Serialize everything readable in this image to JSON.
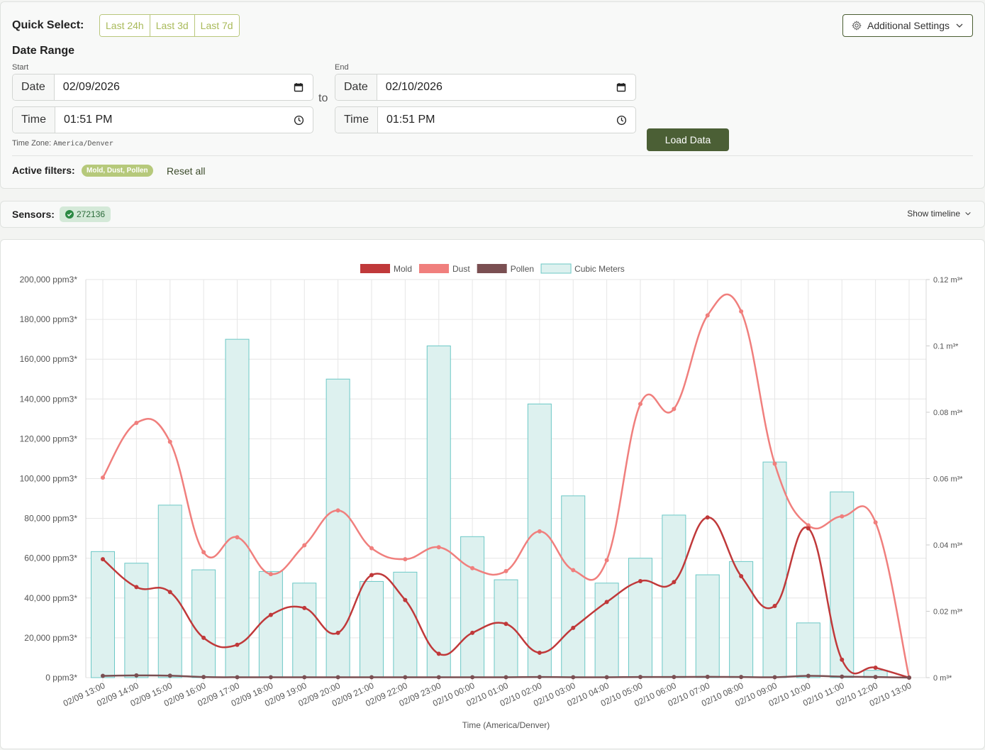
{
  "quick_select": {
    "label": "Quick Select:",
    "options": [
      "Last 24h",
      "Last 3d",
      "Last 7d"
    ]
  },
  "settings": {
    "label": "Additional Settings",
    "icon": "gear-icon",
    "chevron": "chevron-down-icon"
  },
  "date_range": {
    "title": "Date Range",
    "start_label": "Start",
    "end_label": "End",
    "to_text": "to",
    "start": {
      "date_addon": "Date",
      "date_value": "02/09/2026",
      "time_addon": "Time",
      "time_value": "01:51 PM"
    },
    "end": {
      "date_addon": "Date",
      "date_value": "02/10/2026",
      "time_addon": "Time",
      "time_value": "01:51 PM"
    },
    "timezone_label": "Time Zone:",
    "timezone_value": "America/Denver",
    "load_button": "Load Data"
  },
  "filters": {
    "label": "Active filters:",
    "badge": "Mold, Dust, Pollen",
    "reset": "Reset all"
  },
  "sensors": {
    "label": "Sensors:",
    "id": "272136",
    "status_icon": "check-circle-icon",
    "timeline_link": "Show timeline"
  },
  "colors": {
    "accent": "#4b5f35",
    "quick_select": "#a9ba5a",
    "mold": "#c0393a",
    "dust": "#f07f7d",
    "pollen": "#7a4f52",
    "cubic_fill": "#ddf1ef",
    "cubic_stroke": "#6cc8c6"
  },
  "chart_data": {
    "type": "line",
    "xlabel": "Time (America/Denver)",
    "y_left": {
      "min": 0,
      "max": 200000,
      "step": 20000,
      "unit": "ppm3*"
    },
    "y_right": {
      "min": 0,
      "max": 0.12,
      "ticks": [
        "0 m³*",
        "0.02 m³*",
        "0.04 m³*",
        "0.06 m³*",
        "0.08 m³*",
        "0.1 m³*",
        "0.12 m³*"
      ]
    },
    "grid": true,
    "legend_position": "top",
    "y_left_ticks": [
      "0 ppm3*",
      "20,000 ppm3*",
      "40,000 ppm3*",
      "60,000 ppm3*",
      "80,000 ppm3*",
      "100,000 ppm3*",
      "120,000 ppm3*",
      "140,000 ppm3*",
      "160,000 ppm3*",
      "180,000 ppm3*",
      "200,000 ppm3*"
    ],
    "x": [
      "02/09 13:00",
      "02/09 14:00",
      "02/09 15:00",
      "02/09 16:00",
      "02/09 17:00",
      "02/09 18:00",
      "02/09 19:00",
      "02/09 20:00",
      "02/09 21:00",
      "02/09 22:00",
      "02/09 23:00",
      "02/10 00:00",
      "02/10 01:00",
      "02/10 02:00",
      "02/10 03:00",
      "02/10 04:00",
      "02/10 05:00",
      "02/10 06:00",
      "02/10 07:00",
      "02/10 08:00",
      "02/10 09:00",
      "02/10 10:00",
      "02/10 11:00",
      "02/10 12:00",
      "02/10 13:00"
    ],
    "series": [
      {
        "name": "Mold",
        "axis": "left",
        "kind": "line",
        "color": "#c0393a",
        "values": [
          59500,
          45500,
          43000,
          20000,
          16500,
          31500,
          35000,
          22500,
          51500,
          39000,
          12000,
          22500,
          27000,
          12500,
          25000,
          38000,
          48500,
          48000,
          80500,
          51000,
          36000,
          75000,
          9000,
          5000,
          0
        ]
      },
      {
        "name": "Dust",
        "axis": "left",
        "kind": "line",
        "color": "#f07f7d",
        "values": [
          100500,
          128000,
          118500,
          63000,
          70500,
          52000,
          66500,
          84000,
          65000,
          59500,
          65500,
          55000,
          53500,
          73500,
          54000,
          59000,
          137500,
          135000,
          182000,
          184000,
          107500,
          76500,
          81000,
          78000,
          0
        ]
      },
      {
        "name": "Pollen",
        "axis": "left",
        "kind": "line",
        "color": "#7a4f52",
        "values": [
          900,
          1100,
          1000,
          300,
          200,
          200,
          200,
          200,
          200,
          200,
          200,
          200,
          200,
          300,
          200,
          200,
          300,
          300,
          400,
          300,
          200,
          900,
          500,
          300,
          0
        ]
      },
      {
        "name": "Cubic Meters",
        "axis": "right",
        "kind": "bar",
        "color": "#6cc8c6",
        "values": [
          0.038,
          0.0345,
          0.052,
          0.0325,
          0.102,
          0.032,
          0.0285,
          0.09,
          0.029,
          0.0318,
          0.1,
          0.0425,
          0.0295,
          0.0825,
          0.0548,
          0.0285,
          0.036,
          0.049,
          0.031,
          0.035,
          0.065,
          0.0165,
          0.056,
          0.0022,
          0
        ]
      }
    ]
  }
}
